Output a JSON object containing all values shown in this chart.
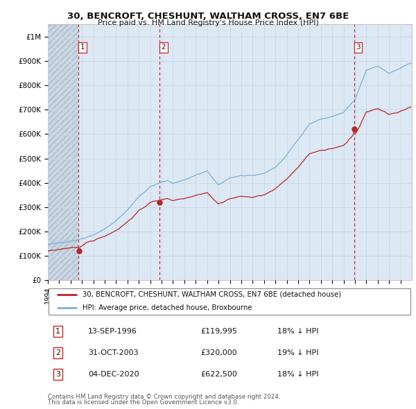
{
  "title": "30, BENCROFT, CHESHUNT, WALTHAM CROSS, EN7 6BE",
  "subtitle": "Price paid vs. HM Land Registry's House Price Index (HPI)",
  "legend_entry1": "30, BENCROFT, CHESHUNT, WALTHAM CROSS, EN7 6BE (detached house)",
  "legend_entry2": "HPI: Average price, detached house, Broxbourne",
  "footer1": "Contains HM Land Registry data © Crown copyright and database right 2024.",
  "footer2": "This data is licensed under the Open Government Licence v3.0.",
  "transactions": [
    {
      "num": "1",
      "date": "13-SEP-1996",
      "price": "£119,995",
      "note": "18% ↓ HPI",
      "year": 1996.71
    },
    {
      "num": "2",
      "date": "31-OCT-2003",
      "price": "£320,000",
      "note": "19% ↓ HPI",
      "year": 2003.83
    },
    {
      "num": "3",
      "date": "04-DEC-2020",
      "price": "£622,500",
      "note": "18% ↓ HPI",
      "year": 2020.92
    }
  ],
  "hpi_color": "#7bafd4",
  "price_color": "#bb2222",
  "grid_color": "#c8d8e8",
  "bg_color": "#dce8f4",
  "hatch_color": "#b8c8d8",
  "ylim": [
    0,
    1000000
  ],
  "ytick_max": 1000000,
  "xstart": 1994,
  "xend": 2026
}
